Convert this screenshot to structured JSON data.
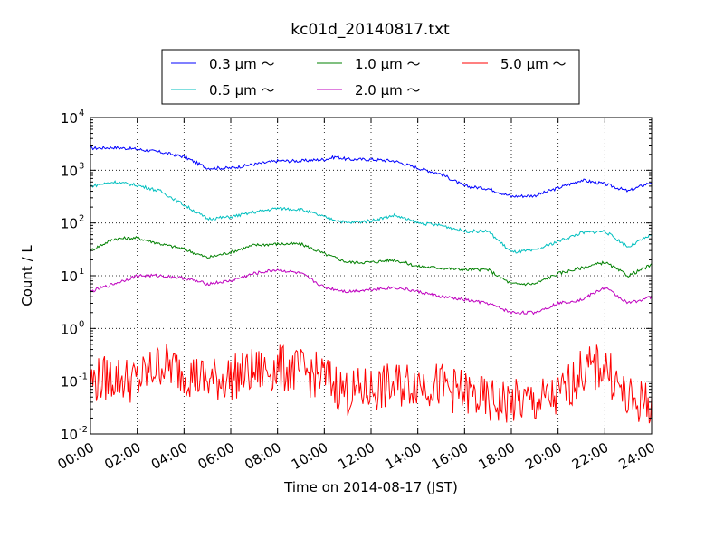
{
  "chart_data": {
    "type": "line",
    "title": "kc01d_20140817.txt",
    "xlabel": "Time on 2014-08-17 (JST)",
    "ylabel": "Count / L",
    "y_scale": "log",
    "ylim_exponent": [
      -2,
      4
    ],
    "y_ticks": [
      {
        "base": "10",
        "exp": "4",
        "value": 10000
      },
      {
        "base": "10",
        "exp": "3",
        "value": 1000
      },
      {
        "base": "10",
        "exp": "2",
        "value": 100
      },
      {
        "base": "10",
        "exp": "1",
        "value": 10
      },
      {
        "base": "10",
        "exp": "0",
        "value": 1
      },
      {
        "base": "10",
        "exp": "-1",
        "value": 0.1
      },
      {
        "base": "10",
        "exp": "-2",
        "value": 0.01
      }
    ],
    "x_ticks": [
      "00:00",
      "02:00",
      "04:00",
      "06:00",
      "08:00",
      "10:00",
      "12:00",
      "14:00",
      "16:00",
      "18:00",
      "20:00",
      "22:00",
      "24:00"
    ],
    "grid": true,
    "legend_position": "top-center",
    "colors": {
      "axes": "#000000",
      "grid": "#000000",
      "background": "#ffffff"
    },
    "series": [
      {
        "name": "0.3 μm ～",
        "color": "#0000ff",
        "points": [
          [
            0,
            2600
          ],
          [
            1,
            2700
          ],
          [
            2,
            2500
          ],
          [
            3,
            2200
          ],
          [
            4,
            1800
          ],
          [
            5,
            1100
          ],
          [
            6,
            1100
          ],
          [
            7,
            1300
          ],
          [
            8,
            1500
          ],
          [
            9,
            1500
          ],
          [
            10,
            1600
          ],
          [
            10.5,
            1800
          ],
          [
            11,
            1600
          ],
          [
            12,
            1600
          ],
          [
            13,
            1500
          ],
          [
            14,
            1100
          ],
          [
            15,
            850
          ],
          [
            16,
            500
          ],
          [
            17,
            450
          ],
          [
            18,
            320
          ],
          [
            19,
            330
          ],
          [
            20,
            460
          ],
          [
            21,
            650
          ],
          [
            22,
            550
          ],
          [
            23,
            400
          ],
          [
            24,
            600
          ]
        ]
      },
      {
        "name": "1.0 μm ～",
        "color": "#008000",
        "points": [
          [
            0,
            30
          ],
          [
            1,
            50
          ],
          [
            2,
            52
          ],
          [
            3,
            40
          ],
          [
            4,
            32
          ],
          [
            5,
            22
          ],
          [
            6,
            28
          ],
          [
            7,
            38
          ],
          [
            8,
            40
          ],
          [
            9,
            40
          ],
          [
            10,
            26
          ],
          [
            11,
            18
          ],
          [
            12,
            18
          ],
          [
            13,
            20
          ],
          [
            14,
            15
          ],
          [
            15,
            14
          ],
          [
            16,
            13
          ],
          [
            17,
            13
          ],
          [
            18,
            7
          ],
          [
            19,
            7
          ],
          [
            20,
            11
          ],
          [
            21,
            14
          ],
          [
            22,
            18
          ],
          [
            23,
            10
          ],
          [
            24,
            16
          ]
        ]
      },
      {
        "name": "5.0 μm ～",
        "color": "#ff0000",
        "points": [
          [
            0,
            0.1
          ],
          [
            1,
            0.12
          ],
          [
            2,
            0.1
          ],
          [
            3,
            0.22
          ],
          [
            4,
            0.15
          ],
          [
            5,
            0.1
          ],
          [
            6,
            0.12
          ],
          [
            7,
            0.15
          ],
          [
            8,
            0.18
          ],
          [
            9,
            0.15
          ],
          [
            10,
            0.12
          ],
          [
            11,
            0.06
          ],
          [
            12,
            0.07
          ],
          [
            13,
            0.08
          ],
          [
            14,
            0.1
          ],
          [
            15,
            0.08
          ],
          [
            16,
            0.06
          ],
          [
            17,
            0.04
          ],
          [
            18,
            0.04
          ],
          [
            19,
            0.04
          ],
          [
            20,
            0.05
          ],
          [
            21,
            0.15
          ],
          [
            22,
            0.2
          ],
          [
            23,
            0.04
          ],
          [
            24,
            0.04
          ]
        ]
      },
      {
        "name": "0.5 μm ～",
        "color": "#00bfbf",
        "points": [
          [
            0,
            500
          ],
          [
            1,
            600
          ],
          [
            2,
            520
          ],
          [
            3,
            400
          ],
          [
            4,
            220
          ],
          [
            5,
            120
          ],
          [
            6,
            130
          ],
          [
            7,
            160
          ],
          [
            8,
            190
          ],
          [
            9,
            180
          ],
          [
            10,
            130
          ],
          [
            11,
            100
          ],
          [
            12,
            110
          ],
          [
            13,
            140
          ],
          [
            14,
            100
          ],
          [
            15,
            90
          ],
          [
            16,
            70
          ],
          [
            17,
            70
          ],
          [
            18,
            28
          ],
          [
            19,
            30
          ],
          [
            20,
            45
          ],
          [
            21,
            65
          ],
          [
            22,
            70
          ],
          [
            23,
            35
          ],
          [
            24,
            60
          ]
        ]
      },
      {
        "name": "2.0 μm ～",
        "color": "#bf00bf",
        "points": [
          [
            0,
            5
          ],
          [
            1,
            7
          ],
          [
            2,
            10
          ],
          [
            3,
            10
          ],
          [
            4,
            9
          ],
          [
            5,
            7
          ],
          [
            6,
            8
          ],
          [
            7,
            11
          ],
          [
            8,
            13
          ],
          [
            9,
            11
          ],
          [
            10,
            6
          ],
          [
            11,
            5
          ],
          [
            12,
            5.5
          ],
          [
            13,
            6
          ],
          [
            14,
            5
          ],
          [
            15,
            4
          ],
          [
            16,
            3.5
          ],
          [
            17,
            3
          ],
          [
            18,
            2
          ],
          [
            19,
            2
          ],
          [
            20,
            3
          ],
          [
            21,
            3.5
          ],
          [
            22,
            6
          ],
          [
            23,
            3
          ],
          [
            24,
            4
          ]
        ]
      }
    ]
  }
}
